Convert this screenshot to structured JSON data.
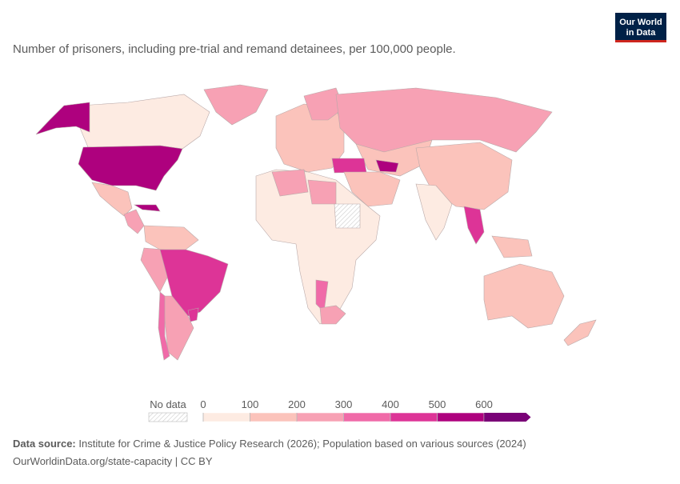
{
  "header": {
    "subtitle": "Number of prisoners, including pre-trial and remand detainees, per 100,000 people.",
    "logo": [
      "Our World",
      "in Data"
    ]
  },
  "legend": {
    "no_data": "No data",
    "ticks": [
      0,
      100,
      200,
      300,
      400,
      500,
      600
    ],
    "colors": [
      "#fdebe2",
      "#fbc3bb",
      "#f7a1b4",
      "#f06aa8",
      "#dd3497",
      "#ae017e",
      "#7a0177"
    ]
  },
  "footer": {
    "source_label": "Data source:",
    "source": "Institute for Crime & Justice Policy Research (2026); Population based on various sources (2024)",
    "url": "OurWorldinData.org/state-capacity | CC BY"
  }
}
